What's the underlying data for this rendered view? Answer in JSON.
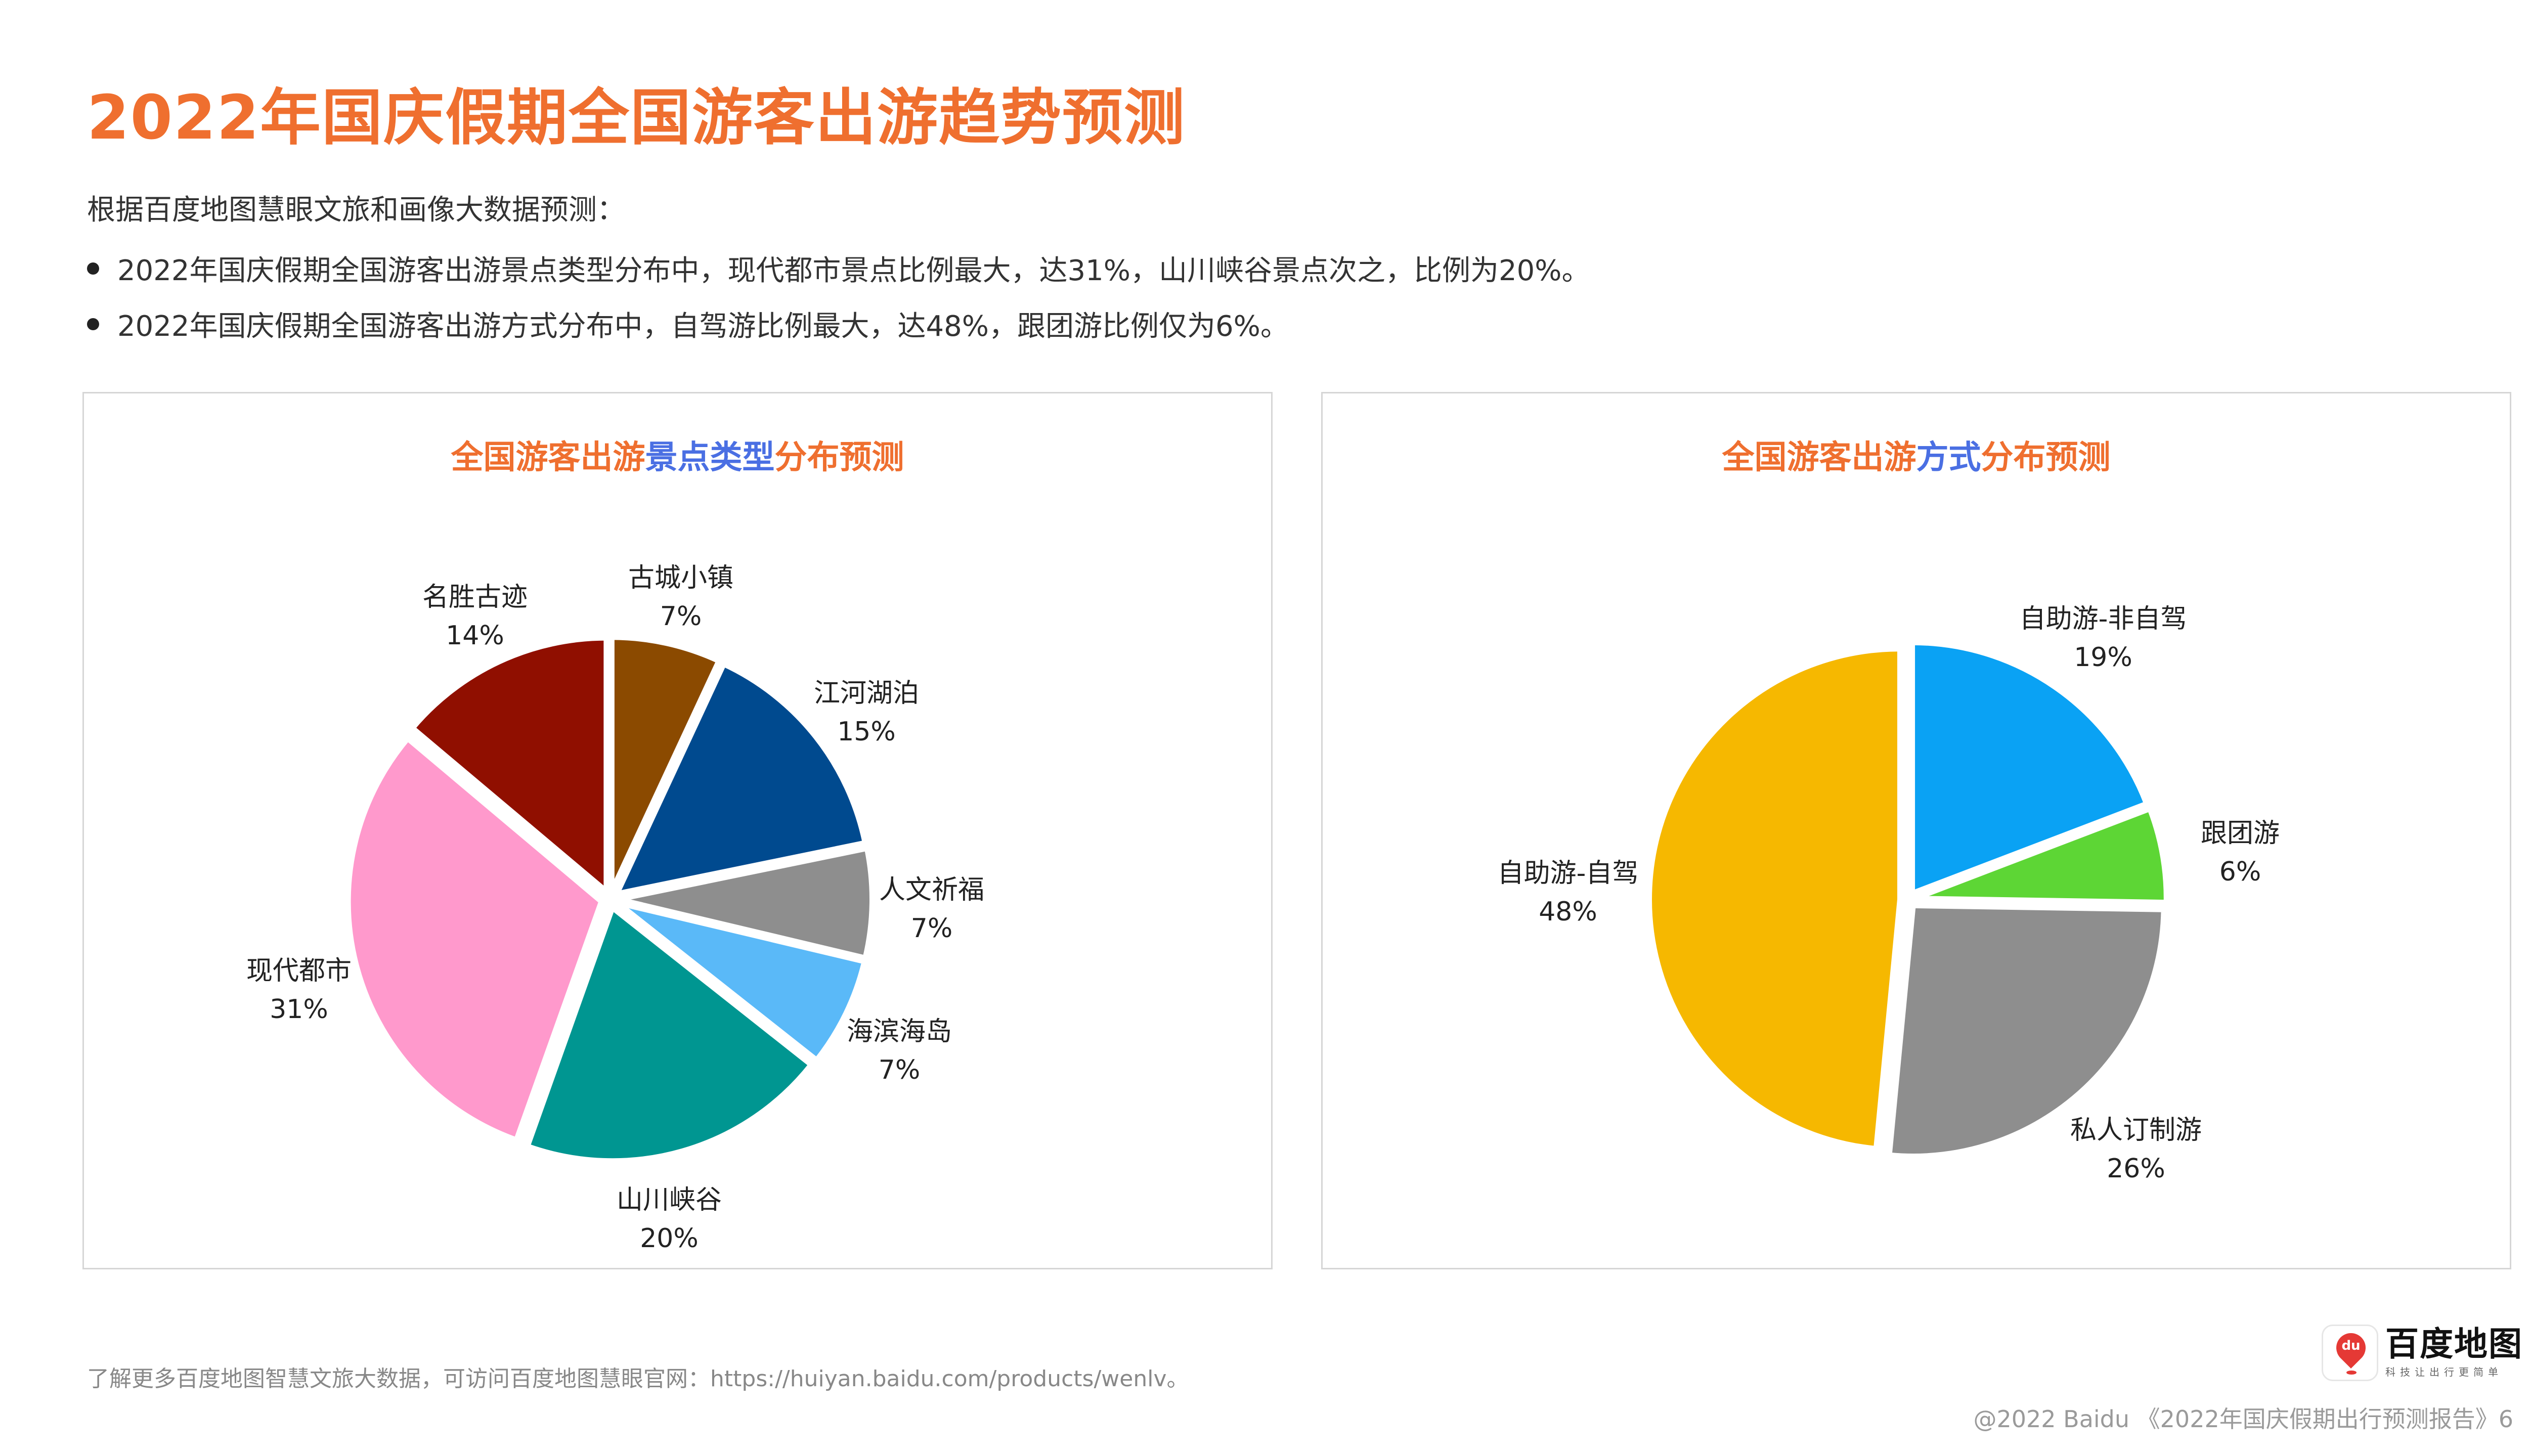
{
  "title": "2022年国庆假期全国游客出游趋势预测",
  "intro": "根据百度地图慧眼文旅和画像大数据预测：",
  "bullets": [
    "2022年国庆假期全国游客出游景点类型分布中，现代都市景点比例最大，达31%，山川峡谷景点次之，比例为20%。",
    "2022年国庆假期全国游客出游方式分布中，自驾游比例最大，达48%，跟团游比例仅为6%。"
  ],
  "panels": {
    "left": {
      "title_parts": [
        "全国游客出游",
        "景点类型",
        "分布预测"
      ]
    },
    "right": {
      "title_parts": [
        "全国游客出游",
        "方式",
        "分布预测"
      ]
    }
  },
  "chart_data": [
    {
      "type": "pie",
      "title": "全国游客出游景点类型分布预测",
      "slices": [
        {
          "label": "古城小镇",
          "value": 7,
          "value_label": "7%",
          "color": "#8b4a00"
        },
        {
          "label": "江河湖泊",
          "value": 15,
          "value_label": "15%",
          "color": "#004a8f"
        },
        {
          "label": "人文祈福",
          "value": 7,
          "value_label": "7%",
          "color": "#8e8e8e"
        },
        {
          "label": "海滨海岛",
          "value": 7,
          "value_label": "7%",
          "color": "#5ab9f8"
        },
        {
          "label": "山川峡谷",
          "value": 20,
          "value_label": "20%",
          "color": "#009691"
        },
        {
          "label": "现代都市",
          "value": 31,
          "value_label": "31%",
          "color": "#ff99cc"
        },
        {
          "label": "名胜古迹",
          "value": 14,
          "value_label": "14%",
          "color": "#900f00"
        }
      ]
    },
    {
      "type": "pie",
      "title": "全国游客出游方式分布预测",
      "slices": [
        {
          "label": "自助游-非自驾",
          "value": 19,
          "value_label": "19%",
          "color": "#0aa2f4"
        },
        {
          "label": "跟团游",
          "value": 6,
          "value_label": "6%",
          "color": "#5dd635"
        },
        {
          "label": "私人订制游",
          "value": 26,
          "value_label": "26%",
          "color": "#8e8e8e"
        },
        {
          "label": "自助游-自驾",
          "value": 48,
          "value_label": "48%",
          "color": "#f6b800"
        }
      ]
    }
  ],
  "footer_note": "了解更多百度地图智慧文旅大数据，可访问百度地图慧眼官网：https://huiyan.baidu.com/products/wenlv。",
  "brand": {
    "name": "百度地图",
    "slogan": "科技让出行更简单",
    "icon_text": "du"
  },
  "copyright": "@2022 Baidu 《2022年国庆假期出行预测报告》6"
}
